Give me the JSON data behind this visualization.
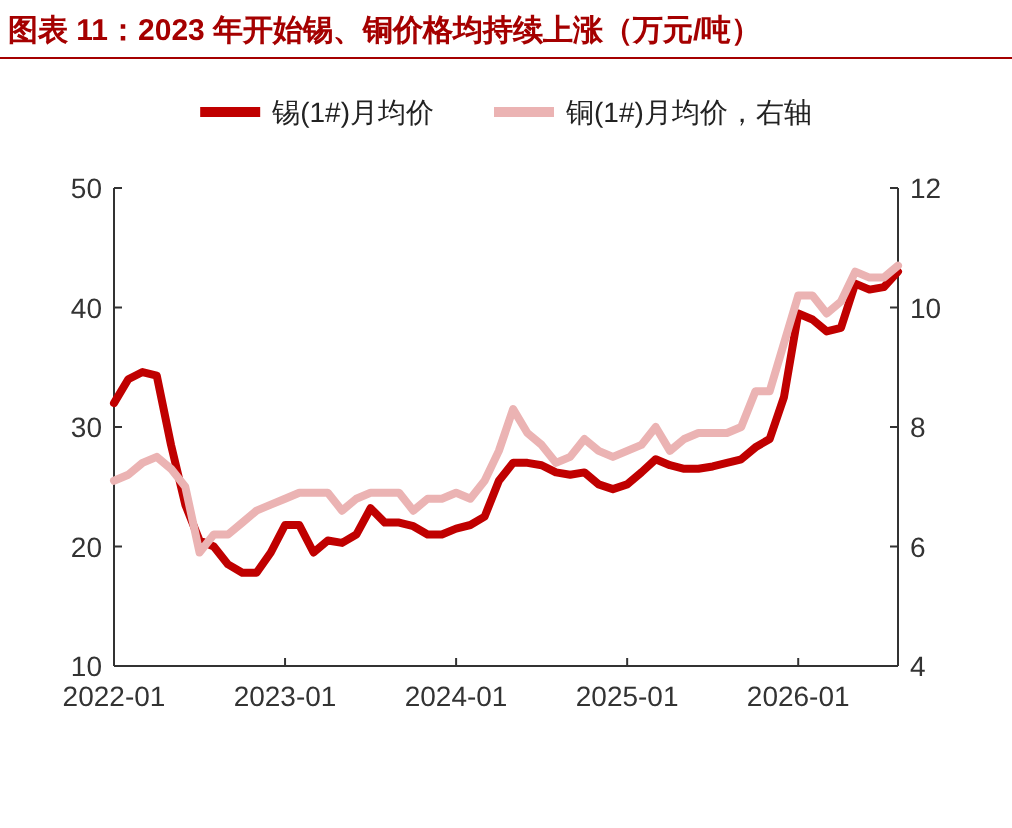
{
  "chart_data": {
    "type": "line",
    "title": "图表 11：2023 年开始锡、铜价格均持续上涨（万元/吨）",
    "x": [
      "2022-01",
      "2022-02",
      "2022-03",
      "2022-04",
      "2022-05",
      "2022-06",
      "2022-07",
      "2022-08",
      "2022-09",
      "2022-10",
      "2022-11",
      "2022-12",
      "2023-01",
      "2023-02",
      "2023-03",
      "2023-04",
      "2023-05",
      "2023-06",
      "2023-07",
      "2023-08",
      "2023-09",
      "2023-10",
      "2023-11",
      "2023-12",
      "2024-01",
      "2024-02",
      "2024-03",
      "2024-04",
      "2024-05",
      "2024-06",
      "2024-07",
      "2024-08",
      "2024-09",
      "2024-10",
      "2024-11",
      "2024-12",
      "2025-01",
      "2025-02",
      "2025-03",
      "2025-04",
      "2025-05",
      "2025-06",
      "2025-07",
      "2025-08",
      "2025-09",
      "2025-10",
      "2025-11",
      "2025-12",
      "2026-01",
      "2026-02",
      "2026-03",
      "2026-04",
      "2026-05",
      "2026-06",
      "2026-07",
      "2026-08"
    ],
    "series": [
      {
        "name": "锡(1#)月均价",
        "color": "#c00000",
        "values": [
          32,
          34,
          34.6,
          34.3,
          28.5,
          23.5,
          20.5,
          20,
          18.5,
          17.8,
          17.8,
          19.5,
          21.8,
          21.8,
          19.5,
          20.5,
          20.3,
          21,
          23.2,
          22,
          22,
          21.7,
          21,
          21,
          21.5,
          21.8,
          22.5,
          25.5,
          27,
          27,
          26.8,
          26.2,
          26,
          26.2,
          25.2,
          24.8,
          25.2,
          26.2,
          27.3,
          26.8,
          26.5,
          26.5,
          26.7,
          27,
          27.3,
          28.3,
          29,
          32.5,
          39.5,
          39,
          38,
          38.3,
          42,
          41.5,
          41.7,
          43
        ]
      },
      {
        "name": "铜(1#)月均价，右轴",
        "color": "#ebb3b3",
        "axis": "y2",
        "values": [
          7.1,
          7.2,
          7.4,
          7.5,
          7.3,
          7.0,
          5.9,
          6.2,
          6.2,
          6.4,
          6.6,
          6.7,
          6.8,
          6.9,
          6.9,
          6.9,
          6.6,
          6.8,
          6.9,
          6.9,
          6.9,
          6.6,
          6.8,
          6.8,
          6.9,
          6.8,
          7.1,
          7.6,
          8.3,
          7.9,
          7.7,
          7.4,
          7.5,
          7.8,
          7.6,
          7.5,
          7.6,
          7.7,
          8.0,
          7.6,
          7.8,
          7.9,
          7.9,
          7.9,
          8.0,
          8.6,
          8.6,
          9.4,
          10.2,
          10.2,
          9.9,
          10.1,
          10.6,
          10.5,
          10.5,
          10.7
        ]
      }
    ],
    "xlim": [
      "2022-01",
      "2026-08"
    ],
    "xticks": [
      "2022-01",
      "2023-01",
      "2024-01",
      "2025-01",
      "2026-01"
    ],
    "ylim": [
      10,
      50
    ],
    "yticks": [
      10,
      20,
      30,
      40,
      50
    ],
    "y2lim": [
      4,
      12
    ],
    "y2ticks": [
      4,
      6,
      8,
      10,
      12
    ],
    "grid": false,
    "legend": "top"
  }
}
